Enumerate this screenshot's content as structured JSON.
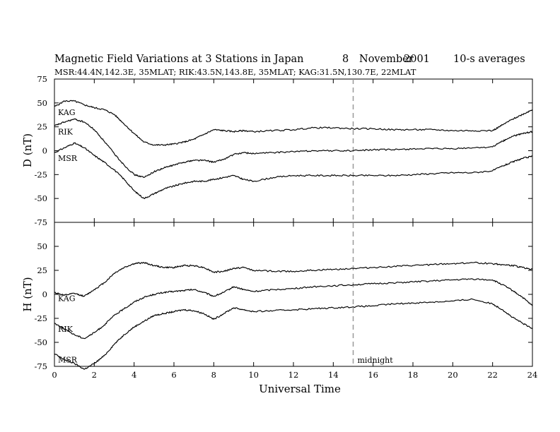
{
  "header": {
    "title": "Magnetic Field Variations at 3 Stations in Japan",
    "date_day": "8",
    "date_month": "November",
    "date_year": "2001",
    "averaging": "10-s averages",
    "stations": "MSR:44.4N,142.3E, 35MLAT;   RIK:43.5N,143.8E, 35MLAT;   KAG:31.5N,130.7E, 22MLAT"
  },
  "chart_data": [
    {
      "type": "line",
      "ylabel": "D (nT)",
      "ylim": [
        -75,
        75
      ],
      "yticks": [
        -75,
        -50,
        -25,
        0,
        25,
        50,
        75
      ],
      "xlim": [
        0,
        24
      ],
      "series": [
        {
          "name": "KAG",
          "x": [
            0,
            0.5,
            1,
            1.5,
            2,
            2.5,
            3,
            3.5,
            4,
            4.5,
            5,
            5.5,
            6,
            6.5,
            7,
            7.5,
            8,
            8.5,
            9,
            9.5,
            10,
            11,
            12,
            13,
            14,
            15,
            16,
            17,
            18,
            19,
            20,
            21,
            22,
            22.5,
            23,
            23.5,
            24
          ],
          "y": [
            46,
            52,
            52,
            48,
            45,
            43,
            38,
            28,
            18,
            9,
            6,
            6,
            7,
            9,
            12,
            17,
            22,
            21,
            20,
            21,
            20,
            21,
            22,
            24,
            24,
            23,
            23,
            22,
            22,
            22,
            21,
            21,
            21,
            27,
            33,
            38,
            43
          ]
        },
        {
          "name": "RIK",
          "x": [
            0,
            0.5,
            1,
            1.5,
            2,
            2.5,
            3,
            3.5,
            4,
            4.5,
            5,
            5.5,
            6,
            6.5,
            7,
            7.5,
            8,
            8.5,
            9,
            9.5,
            10,
            11,
            12,
            13,
            14,
            15,
            16,
            17,
            18,
            19,
            20,
            21,
            22,
            22.5,
            23,
            23.5,
            24
          ],
          "y": [
            26,
            30,
            33,
            30,
            22,
            10,
            -3,
            -15,
            -25,
            -28,
            -22,
            -18,
            -15,
            -12,
            -10,
            -10,
            -12,
            -9,
            -4,
            -2,
            -3,
            -2,
            -1,
            0,
            0,
            0,
            1,
            1,
            2,
            2,
            2,
            3,
            4,
            10,
            15,
            18,
            20
          ]
        },
        {
          "name": "MSR",
          "x": [
            0,
            0.5,
            1,
            1.5,
            2,
            2.5,
            3,
            3.5,
            4,
            4.5,
            5,
            5.5,
            6,
            6.5,
            7,
            7.5,
            8,
            8.5,
            9,
            9.5,
            10,
            11,
            12,
            13,
            14,
            15,
            16,
            17,
            18,
            19,
            20,
            21,
            22,
            22.5,
            23,
            23.5,
            24
          ],
          "y": [
            -2,
            3,
            8,
            3,
            -5,
            -12,
            -20,
            -30,
            -42,
            -50,
            -45,
            -40,
            -37,
            -34,
            -32,
            -32,
            -30,
            -28,
            -26,
            -30,
            -32,
            -28,
            -26,
            -26,
            -26,
            -26,
            -26,
            -26,
            -25,
            -24,
            -23,
            -23,
            -21,
            -16,
            -12,
            -8,
            -6
          ]
        }
      ]
    },
    {
      "type": "line",
      "ylabel": "H (nT)",
      "ylim": [
        -75,
        75
      ],
      "yticks": [
        -75,
        -50,
        -25,
        0,
        25,
        50
      ],
      "xlim": [
        0,
        24
      ],
      "xlabel": "Universal Time",
      "xticks": [
        0,
        2,
        4,
        6,
        8,
        10,
        12,
        14,
        16,
        18,
        20,
        22,
        24
      ],
      "annotation": {
        "text": "midnight",
        "x": 15
      },
      "series": [
        {
          "name": "KAG",
          "x": [
            0,
            0.5,
            1,
            1.5,
            2,
            2.5,
            3,
            3.5,
            4,
            4.5,
            5,
            5.5,
            6,
            6.5,
            7,
            7.5,
            8,
            8.5,
            9,
            9.5,
            10,
            11,
            12,
            13,
            14,
            15,
            16,
            17,
            18,
            19,
            20,
            21,
            22,
            22.5,
            23,
            23.5,
            24
          ],
          "y": [
            2,
            -1,
            1,
            -2,
            5,
            12,
            22,
            28,
            32,
            33,
            30,
            28,
            28,
            30,
            30,
            28,
            23,
            24,
            27,
            28,
            25,
            24,
            24,
            25,
            26,
            27,
            28,
            29,
            30,
            31,
            32,
            33,
            32,
            31,
            30,
            28,
            26
          ]
        },
        {
          "name": "RIK",
          "x": [
            0,
            0.5,
            1,
            1.5,
            2,
            2.5,
            3,
            3.5,
            4,
            4.5,
            5,
            5.5,
            6,
            6.5,
            7,
            7.5,
            8,
            8.5,
            9,
            9.5,
            10,
            11,
            12,
            13,
            14,
            15,
            16,
            17,
            18,
            19,
            20,
            21,
            22,
            22.5,
            23,
            23.5,
            24
          ],
          "y": [
            -30,
            -36,
            -42,
            -46,
            -40,
            -32,
            -22,
            -15,
            -8,
            -3,
            0,
            2,
            3,
            4,
            5,
            2,
            -2,
            2,
            8,
            5,
            3,
            5,
            6,
            8,
            9,
            10,
            11,
            12,
            13,
            14,
            15,
            16,
            15,
            10,
            4,
            -3,
            -12
          ]
        },
        {
          "name": "MSR",
          "x": [
            0,
            0.5,
            1,
            1.5,
            2,
            2.5,
            3,
            3.5,
            4,
            4.5,
            5,
            5.5,
            6,
            6.5,
            7,
            7.5,
            8,
            8.5,
            9,
            9.5,
            10,
            11,
            12,
            13,
            14,
            15,
            16,
            17,
            18,
            19,
            20,
            21,
            22,
            22.5,
            23,
            23.5,
            24
          ],
          "y": [
            -62,
            -68,
            -72,
            -78,
            -72,
            -64,
            -52,
            -42,
            -34,
            -28,
            -22,
            -20,
            -18,
            -16,
            -17,
            -20,
            -26,
            -20,
            -14,
            -16,
            -18,
            -17,
            -16,
            -15,
            -14,
            -13,
            -12,
            -10,
            -9,
            -8,
            -7,
            -5,
            -10,
            -16,
            -24,
            -30,
            -36
          ]
        }
      ]
    }
  ]
}
